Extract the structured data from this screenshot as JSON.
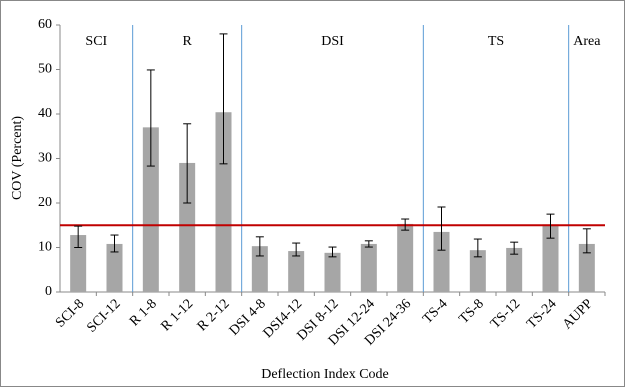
{
  "chart_data": {
    "type": "bar",
    "x_label": "Deflection Index Code",
    "y_label": "COV (Percent)",
    "categories": [
      "SCI-8",
      "SCI-12",
      "R 1-8",
      "R 1-12",
      "R 2-12",
      "DSI 4-8",
      "DSI4-12",
      "DSI 8-12",
      "DSI 12-24",
      "DSI 24-36",
      "TS-4",
      "TS-8",
      "TS-12",
      "TS-24",
      "AUPP"
    ],
    "values": [
      12.8,
      10.8,
      37,
      29,
      40.4,
      10.3,
      9.2,
      8.8,
      10.8,
      15.3,
      13.5,
      9.4,
      9.9,
      15.2,
      10.8
    ],
    "err_minus": [
      2.8,
      1.8,
      8.7,
      9.0,
      11.6,
      2.2,
      1.1,
      0.9,
      0.7,
      1.4,
      4.1,
      1.5,
      1.4,
      3.1,
      2.0
    ],
    "err_plus": [
      2.0,
      2.0,
      12.9,
      8.8,
      17.6,
      2.1,
      1.8,
      1.3,
      0.7,
      1.1,
      5.6,
      2.5,
      1.3,
      2.3,
      3.4
    ],
    "color": "#a6a6a6",
    "groups": [
      {
        "label": "SCI",
        "span": 2
      },
      {
        "label": "R",
        "span": 3
      },
      {
        "label": "DSI",
        "span": 5
      },
      {
        "label": "TS",
        "span": 4
      },
      {
        "label": "Area",
        "span": 1
      }
    ],
    "group_separator_color": "#5b9bd5",
    "reference_line": {
      "value": 15,
      "color": "#c00000"
    },
    "ylim": [
      0,
      60
    ],
    "yticks": [
      0,
      10,
      20,
      30,
      40,
      50,
      60
    ],
    "grid": false
  }
}
